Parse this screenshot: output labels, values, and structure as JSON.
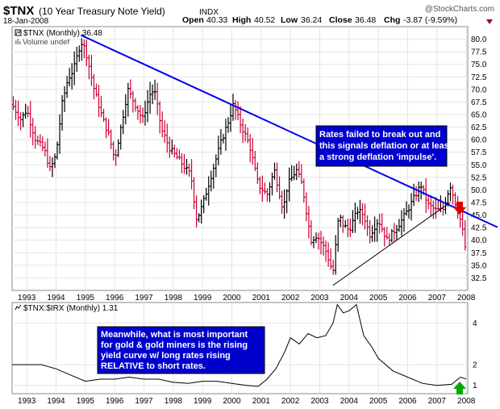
{
  "header": {
    "symbol": "$TNX",
    "description": "(10 Year Treasury Note Yield)",
    "exchange": "INDX",
    "date": "18-Jan-2008",
    "watermark": "@StockCharts.com",
    "quote": {
      "open_label": "Open",
      "open": "40.33",
      "high_label": "High",
      "high": "40.52",
      "low_label": "Low",
      "low": "36.24",
      "close_label": "Close",
      "close": "36.48",
      "chg_label": "Chg",
      "chg": "-3.87 (-9.59%)"
    }
  },
  "main_panel": {
    "legend_price": "$TNX (Monthly) 36.48",
    "legend_volume": "Volume undef",
    "callout": "Rates failed to break out and this signals deflation or at least a strong deflation 'impulse'.",
    "callout_lines": [
      "Rates failed to break out and",
      "this signals deflation or at least",
      "a strong deflation 'impulse'."
    ]
  },
  "lower_panel": {
    "legend": "$TNX:$IRX (Monthly) 1.31",
    "callout_lines": [
      "Meanwhile, what is most important",
      "for gold & gold miners is the rising",
      "yield curve w/ long rates rising",
      "RELATIVE to short rates."
    ]
  },
  "colors": {
    "up_bar": "#000000",
    "down_bar": "#cc0033",
    "trendline_down": "#0000ee",
    "trendline_up": "#000000",
    "callout_bg": "#0000cc",
    "callout_text": "#ffffff",
    "arrow_down": "#dd0000",
    "arrow_up": "#00aa00",
    "ratio_line": "#000000",
    "grid": "#e4e4e4"
  },
  "chart_data": [
    {
      "type": "ohlc-bar",
      "title": "$TNX (10 Year Treasury Note Yield)",
      "period": "monthly",
      "x_start_year": 1992.5,
      "x_end_year": 2008.05,
      "ylim": [
        30.0,
        82.5
      ],
      "y_ticks": [
        "32.5",
        "35.0",
        "37.5",
        "40.0",
        "42.5",
        "45.0",
        "47.5",
        "50.0",
        "52.5",
        "55.0",
        "57.5",
        "60.0",
        "62.5",
        "65.0",
        "67.5",
        "70.0",
        "72.5",
        "75.0",
        "77.5",
        "80.0"
      ],
      "x_ticks": [
        "1993",
        "1994",
        "1995",
        "1996",
        "1997",
        "1998",
        "1999",
        "2000",
        "2001",
        "2002",
        "2003",
        "2004",
        "2005",
        "2006",
        "2007",
        "2008"
      ],
      "close_anchors": [
        [
          1992.5,
          67
        ],
        [
          1992.8,
          64
        ],
        [
          1993.0,
          66
        ],
        [
          1993.3,
          60
        ],
        [
          1993.6,
          58
        ],
        [
          1993.8,
          54
        ],
        [
          1994.0,
          57
        ],
        [
          1994.2,
          67
        ],
        [
          1994.4,
          72
        ],
        [
          1994.6,
          74
        ],
        [
          1994.85,
          79.5
        ],
        [
          1995.0,
          78
        ],
        [
          1995.3,
          70
        ],
        [
          1995.6,
          64
        ],
        [
          1995.8,
          61
        ],
        [
          1996.0,
          56
        ],
        [
          1996.2,
          62
        ],
        [
          1996.45,
          70
        ],
        [
          1996.7,
          67
        ],
        [
          1996.95,
          64
        ],
        [
          1997.2,
          69
        ],
        [
          1997.35,
          70
        ],
        [
          1997.6,
          62
        ],
        [
          1997.9,
          58
        ],
        [
          1998.2,
          56
        ],
        [
          1998.45,
          54
        ],
        [
          1998.6,
          53
        ],
        [
          1998.8,
          44
        ],
        [
          1999.0,
          47
        ],
        [
          1999.3,
          53
        ],
        [
          1999.6,
          59
        ],
        [
          1999.9,
          64
        ],
        [
          2000.05,
          67
        ],
        [
          2000.3,
          63
        ],
        [
          2000.6,
          59
        ],
        [
          2000.9,
          51
        ],
        [
          2001.2,
          49
        ],
        [
          2001.45,
          54
        ],
        [
          2001.75,
          46
        ],
        [
          2001.9,
          51
        ],
        [
          2002.2,
          54
        ],
        [
          2002.4,
          51
        ],
        [
          2002.7,
          40
        ],
        [
          2002.9,
          41
        ],
        [
          2003.2,
          38
        ],
        [
          2003.45,
          33.5
        ],
        [
          2003.65,
          45
        ],
        [
          2003.8,
          43
        ],
        [
          2004.0,
          42
        ],
        [
          2004.3,
          46
        ],
        [
          2004.5,
          45
        ],
        [
          2004.7,
          41
        ],
        [
          2005.0,
          44
        ],
        [
          2005.3,
          40
        ],
        [
          2005.5,
          41.5
        ],
        [
          2005.8,
          44
        ],
        [
          2006.0,
          46
        ],
        [
          2006.45,
          51
        ],
        [
          2006.7,
          47
        ],
        [
          2006.95,
          46
        ],
        [
          2007.2,
          46
        ],
        [
          2007.45,
          51
        ],
        [
          2007.6,
          48
        ],
        [
          2007.8,
          44
        ],
        [
          2007.9,
          41
        ],
        [
          2008.0,
          37
        ]
      ],
      "annotations": [
        {
          "type": "trendline",
          "from": [
            1994.85,
            80.8
          ],
          "to": [
            2008.05,
            45.3
          ],
          "color": "blue"
        },
        {
          "type": "trendline",
          "from": [
            2003.45,
            31.0
          ],
          "to": [
            2007.45,
            47.5
          ],
          "color": "black"
        },
        {
          "type": "arrow",
          "direction": "down",
          "at": [
            2007.85,
            46.0
          ],
          "color": "red"
        }
      ]
    },
    {
      "type": "line",
      "title": "$TNX:$IRX (Monthly) 1.31",
      "ylim": [
        0.6,
        5.0
      ],
      "y_ticks": [
        "1",
        "2",
        "4"
      ],
      "x_ticks": [
        "1993",
        "1994",
        "1995",
        "1996",
        "1997",
        "1998",
        "1999",
        "2000",
        "2001",
        "2002",
        "2003",
        "2004",
        "2005",
        "2006",
        "2007",
        "2008"
      ],
      "points": [
        [
          1992.5,
          2.0
        ],
        [
          1993.0,
          2.0
        ],
        [
          1993.5,
          2.0
        ],
        [
          1994.0,
          1.8
        ],
        [
          1994.5,
          1.5
        ],
        [
          1995.0,
          1.2
        ],
        [
          1995.5,
          1.3
        ],
        [
          1996.0,
          1.3
        ],
        [
          1996.5,
          1.4
        ],
        [
          1997.0,
          1.3
        ],
        [
          1997.5,
          1.3
        ],
        [
          1998.0,
          1.15
        ],
        [
          1998.5,
          1.1
        ],
        [
          1999.0,
          1.2
        ],
        [
          1999.5,
          1.2
        ],
        [
          2000.0,
          1.1
        ],
        [
          2000.5,
          1.0
        ],
        [
          2000.9,
          0.95
        ],
        [
          2001.2,
          1.3
        ],
        [
          2001.5,
          1.8
        ],
        [
          2001.8,
          2.6
        ],
        [
          2002.0,
          3.3
        ],
        [
          2002.3,
          3.0
        ],
        [
          2002.6,
          3.5
        ],
        [
          2002.9,
          3.3
        ],
        [
          2003.2,
          3.4
        ],
        [
          2003.45,
          4.0
        ],
        [
          2003.6,
          4.9
        ],
        [
          2003.8,
          4.5
        ],
        [
          2004.0,
          4.6
        ],
        [
          2004.25,
          4.9
        ],
        [
          2004.5,
          3.4
        ],
        [
          2004.8,
          2.8
        ],
        [
          2005.0,
          2.3
        ],
        [
          2005.5,
          1.7
        ],
        [
          2006.0,
          1.4
        ],
        [
          2006.5,
          1.1
        ],
        [
          2007.0,
          1.0
        ],
        [
          2007.5,
          1.05
        ],
        [
          2007.8,
          1.4
        ],
        [
          2008.0,
          1.31
        ]
      ],
      "annotations": [
        {
          "type": "arrow",
          "direction": "up",
          "at": [
            2007.95,
            1.0
          ],
          "color": "green"
        }
      ]
    }
  ]
}
